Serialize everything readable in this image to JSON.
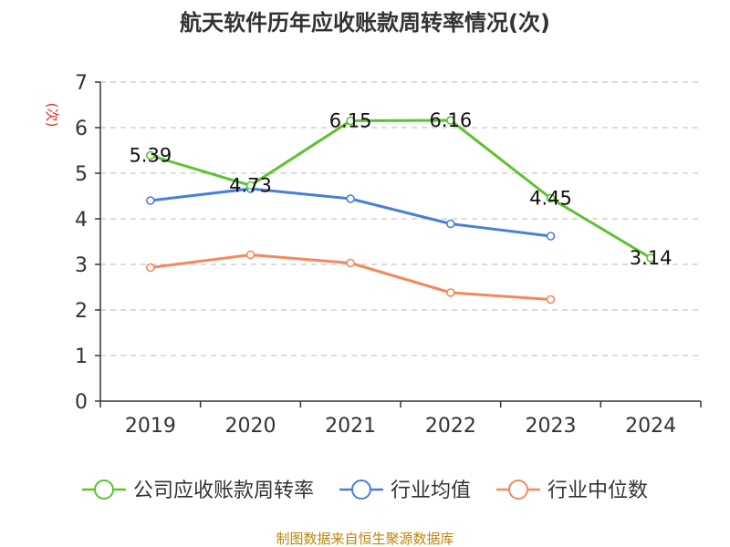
{
  "chart_data": {
    "type": "line",
    "title": "航天软件历年应收账款周转率情况(次)",
    "ylabel": "(次)",
    "xlabel": "",
    "categories": [
      "2019",
      "2020",
      "2021",
      "2022",
      "2023",
      "2024"
    ],
    "ylim": [
      0,
      7
    ],
    "yticks": [
      0,
      1,
      2,
      3,
      4,
      5,
      6,
      7
    ],
    "grid": true,
    "legend_position": "bottom",
    "series": [
      {
        "name": "公司应收账款周转率",
        "color": "#5cc22e",
        "values": [
          5.39,
          4.73,
          6.15,
          6.16,
          4.45,
          3.14
        ],
        "labels": [
          "5.39",
          "4.73",
          "6.15",
          "6.16",
          "4.45",
          "3.14"
        ],
        "show_labels": true
      },
      {
        "name": "行业均值",
        "color": "#4a7fd6",
        "values": [
          4.4,
          4.66,
          4.44,
          3.89,
          3.62,
          null
        ],
        "show_labels": false
      },
      {
        "name": "行业中位数",
        "color": "#f5885a",
        "values": [
          2.93,
          3.21,
          3.03,
          2.38,
          2.23,
          null
        ],
        "show_labels": false
      }
    ]
  },
  "source": "制图数据来自恒生聚源数据库"
}
